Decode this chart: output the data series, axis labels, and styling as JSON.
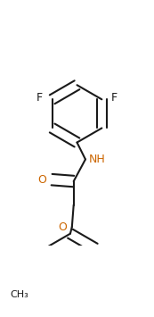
{
  "title": "",
  "background_color": "#ffffff",
  "line_color": "#1a1a1a",
  "atom_colors": {
    "F": "#1a1a1a",
    "O": "#cc6600",
    "N": "#cc6600",
    "C": "#1a1a1a",
    "H": "#1a1a1a"
  },
  "font_size": 9,
  "line_width": 1.5,
  "figsize": [
    1.73,
    3.55
  ],
  "dpi": 100
}
